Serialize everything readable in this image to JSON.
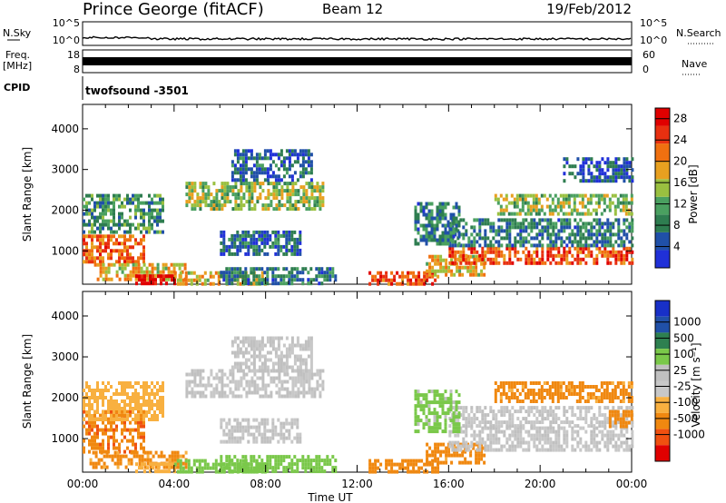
{
  "header": {
    "station": "Prince George (fitACF)",
    "beam": "Beam 12",
    "date": "19/Feb/2012"
  },
  "top_panels": {
    "nsky_label": "N.Sky",
    "nsky_ticks": [
      "10^5",
      "10^0"
    ],
    "nsearch_ticks": [
      "10^5",
      "10^0"
    ],
    "nsearch_label": "N.Search",
    "freq_label": "Freq.",
    "freq_unit": "[MHz]",
    "freq_ticks": [
      "18",
      "8"
    ],
    "nave_ticks": [
      "60",
      "0"
    ],
    "nave_label": "Nave",
    "cpid_label": "CPID",
    "cpid_value": "twofsound -3501"
  },
  "colors": {
    "power": [
      "#2030d8",
      "#2050a8",
      "#2e7d50",
      "#4aa060",
      "#9ac040",
      "#e8a020",
      "#f07010",
      "#e83010",
      "#e00000"
    ],
    "velocity": [
      "#e00000",
      "#f05010",
      "#f08810",
      "#f8b040",
      "#c8c8c8",
      "#c0c0c0",
      "#7ac84a",
      "#2e8050",
      "#2050a8",
      "#1830c8"
    ]
  },
  "chart_data": [
    {
      "type": "heatmap",
      "name": "Power",
      "xlabel": "",
      "ylabel": "Slant Range [km]",
      "x_ticks": [
        "00:00",
        "04:00",
        "08:00",
        "12:00",
        "16:00",
        "20:00",
        "00:00"
      ],
      "xlim_hours": [
        0,
        24
      ],
      "y_ticks": [
        "1000",
        "2000",
        "3000",
        "4000"
      ],
      "ylim": [
        180,
        4600
      ],
      "colorbar": {
        "label": "Power [dB]",
        "ticks": [
          "4",
          "8",
          "12",
          "16",
          "20",
          "24",
          "28"
        ],
        "range": [
          0,
          30
        ]
      },
      "regions": [
        {
          "t0": 0.0,
          "t1": 2.7,
          "r0": 700,
          "r1": 1400,
          "val": 22
        },
        {
          "t0": 0.5,
          "t1": 4.5,
          "r0": 300,
          "r1": 700,
          "val": 18
        },
        {
          "t0": 2.3,
          "t1": 4.0,
          "r0": 180,
          "r1": 420,
          "val": 29
        },
        {
          "t0": 4.0,
          "t1": 8.0,
          "r0": 200,
          "r1": 500,
          "val": 18
        },
        {
          "t0": 6.0,
          "t1": 11.0,
          "r0": 200,
          "r1": 600,
          "val": 8
        },
        {
          "t0": 0.0,
          "t1": 3.5,
          "r0": 1500,
          "r1": 2400,
          "val": 10
        },
        {
          "t0": 4.5,
          "t1": 10.5,
          "r0": 2000,
          "r1": 2700,
          "val": 14
        },
        {
          "t0": 6.0,
          "t1": 9.5,
          "r0": 900,
          "r1": 1500,
          "val": 6
        },
        {
          "t0": 6.5,
          "t1": 10.0,
          "r0": 2700,
          "r1": 3500,
          "val": 6
        },
        {
          "t0": 12.5,
          "t1": 15.5,
          "r0": 200,
          "r1": 500,
          "val": 24
        },
        {
          "t0": 15.0,
          "t1": 17.5,
          "r0": 400,
          "r1": 900,
          "val": 18
        },
        {
          "t0": 16.0,
          "t1": 24.0,
          "r0": 700,
          "r1": 1100,
          "val": 24
        },
        {
          "t0": 16.0,
          "t1": 24.0,
          "r0": 1100,
          "r1": 1800,
          "val": 8
        },
        {
          "t0": 18.0,
          "t1": 24.0,
          "r0": 1900,
          "r1": 2400,
          "val": 14
        },
        {
          "t0": 14.5,
          "t1": 16.5,
          "r0": 1200,
          "r1": 2200,
          "val": 8
        },
        {
          "t0": 21.0,
          "t1": 24.0,
          "r0": 2700,
          "r1": 3300,
          "val": 5
        }
      ]
    },
    {
      "type": "heatmap",
      "name": "Velocity",
      "xlabel": "Time UT",
      "ylabel": "Slant Range [km]",
      "x_ticks": [
        "00:00",
        "04:00",
        "08:00",
        "12:00",
        "16:00",
        "20:00",
        "00:00"
      ],
      "xlim_hours": [
        0,
        24
      ],
      "y_ticks": [
        "1000",
        "2000",
        "3000",
        "4000"
      ],
      "ylim": [
        180,
        4600
      ],
      "colorbar": {
        "label": "Velocity [m s⁻¹]",
        "ticks": [
          "1000",
          "500",
          "100",
          "25",
          "-25",
          "-100",
          "-500",
          "-1000"
        ]
      },
      "regions": [
        {
          "t0": 0.0,
          "t1": 2.7,
          "r0": 700,
          "r1": 1700,
          "val": -400
        },
        {
          "t0": 0.3,
          "t1": 4.5,
          "r0": 300,
          "r1": 700,
          "val": -150
        },
        {
          "t0": 2.3,
          "t1": 4.0,
          "r0": 180,
          "r1": 420,
          "val": -60
        },
        {
          "t0": 4.0,
          "t1": 8.0,
          "r0": 200,
          "r1": 500,
          "val": 60
        },
        {
          "t0": 6.0,
          "t1": 11.0,
          "r0": 200,
          "r1": 600,
          "val": 50
        },
        {
          "t0": 0.0,
          "t1": 3.5,
          "r0": 1500,
          "r1": 2400,
          "val": -60
        },
        {
          "t0": 4.5,
          "t1": 10.5,
          "r0": 2000,
          "r1": 2700,
          "val": 0
        },
        {
          "t0": 6.0,
          "t1": 9.5,
          "r0": 900,
          "r1": 1500,
          "val": 0
        },
        {
          "t0": 6.5,
          "t1": 10.0,
          "r0": 2700,
          "r1": 3500,
          "val": 0
        },
        {
          "t0": 12.5,
          "t1": 15.5,
          "r0": 200,
          "r1": 500,
          "val": -200
        },
        {
          "t0": 15.0,
          "t1": 17.5,
          "r0": 400,
          "r1": 900,
          "val": -150
        },
        {
          "t0": 16.0,
          "t1": 24.0,
          "r0": 700,
          "r1": 1300,
          "val": 0
        },
        {
          "t0": 16.0,
          "t1": 24.0,
          "r0": 1300,
          "r1": 1800,
          "val": 0
        },
        {
          "t0": 18.0,
          "t1": 24.0,
          "r0": 1900,
          "r1": 2400,
          "val": -150
        },
        {
          "t0": 14.5,
          "t1": 16.5,
          "r0": 1200,
          "r1": 2200,
          "val": 40
        },
        {
          "t0": 23.0,
          "t1": 24.0,
          "r0": 1300,
          "r1": 1700,
          "val": -300
        }
      ]
    }
  ]
}
